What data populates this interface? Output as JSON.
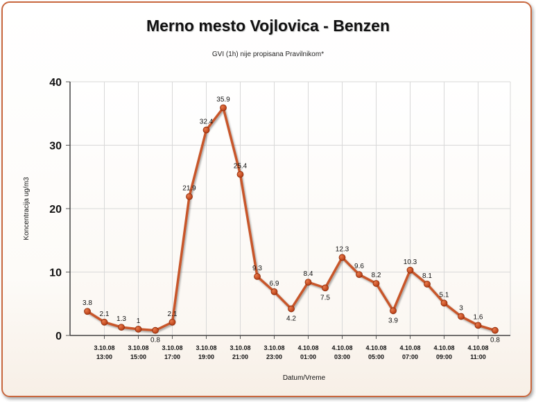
{
  "chart_data": {
    "type": "line",
    "title": "Merno mesto Vojlovica - Benzen",
    "subtitle": "GVI (1h) nije propisana Pravilnikom*",
    "xlabel": "Datum/Vreme",
    "ylabel": "Koncentracija ug/m3",
    "ylim": [
      0,
      40
    ],
    "yticks": [
      "0",
      "10",
      "20",
      "30",
      "40"
    ],
    "xtick_labels": [
      [
        "3.10.08",
        "13:00"
      ],
      [
        "3.10.08",
        "15:00"
      ],
      [
        "3.10.08",
        "17:00"
      ],
      [
        "3.10.08",
        "19:00"
      ],
      [
        "3.10.08",
        "21:00"
      ],
      [
        "3.10.08",
        "23:00"
      ],
      [
        "4.10.08",
        "01:00"
      ],
      [
        "4.10.08",
        "03:00"
      ],
      [
        "4.10.08",
        "05:00"
      ],
      [
        "4.10.08",
        "07:00"
      ],
      [
        "4.10.08",
        "09:00"
      ],
      [
        "4.10.08",
        "11:00"
      ]
    ],
    "grid": true,
    "line_color": "#c8562a",
    "marker_color": "#b43a12",
    "series": [
      {
        "values": [
          3.8,
          2.1,
          1.3,
          1,
          0.8,
          2.1,
          21.9,
          32.4,
          35.9,
          25.4,
          9.3,
          6.9,
          4.2,
          8.4,
          7.5,
          12.3,
          9.6,
          8.2,
          3.9,
          10.3,
          8.1,
          5.1,
          3,
          1.6,
          0.8
        ]
      }
    ]
  }
}
